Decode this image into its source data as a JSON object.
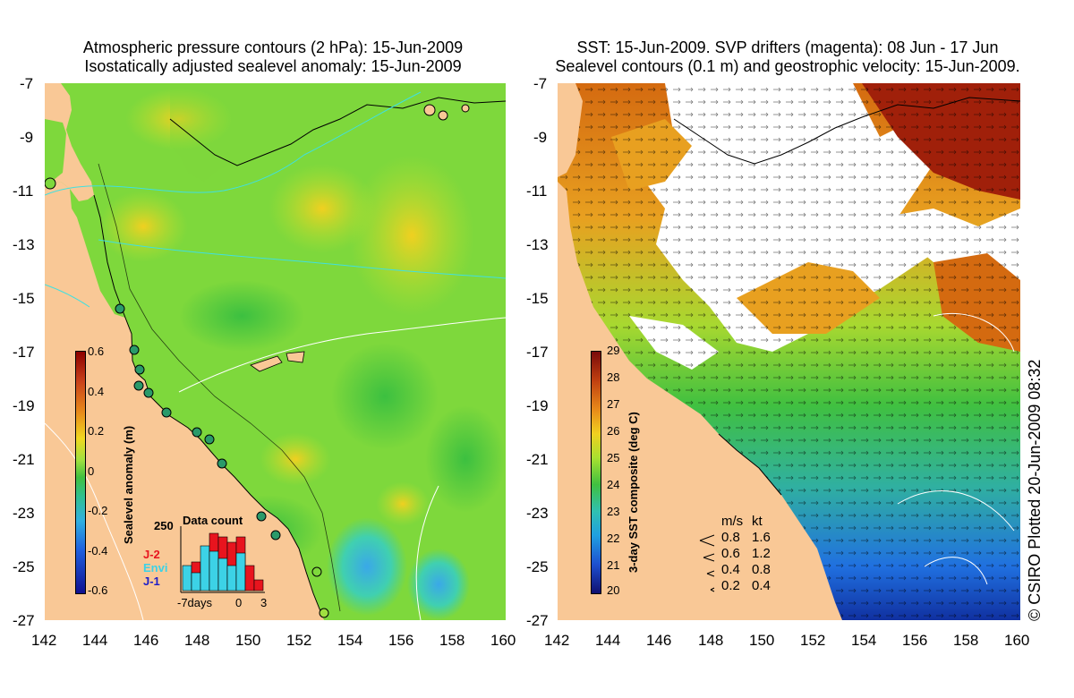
{
  "left_panel": {
    "title_line1": "Atmospheric pressure contours (2 hPa): 15-Jun-2009",
    "title_line2": "Isostatically adjusted sealevel anomaly: 15-Jun-2009",
    "colorbar_title": "Sealevel anomaly (m)",
    "colorbar_ticks": [
      "0.6",
      "0.4",
      "0.2",
      "0",
      "-0.2",
      "-0.4",
      "-0.6"
    ],
    "inset": {
      "title": "Data count",
      "y_label": "250",
      "x_labels": [
        "-7days",
        "0",
        "3"
      ],
      "legend": [
        {
          "label": "J-2",
          "color": "#e8141e"
        },
        {
          "label": "Envi",
          "color": "#3cd2e6"
        },
        {
          "label": "J-1",
          "color": "#1e1ec8"
        }
      ]
    }
  },
  "right_panel": {
    "title_line1": "SST: 15-Jun-2009. SVP drifters (magenta): 08 Jun - 17 Jun",
    "title_line2": "Sealevel contours (0.1 m) and geostrophic velocity: 15-Jun-2009.",
    "colorbar_title": "3-day SST composite (deg C)",
    "colorbar_ticks": [
      "29",
      "28",
      "27",
      "26",
      "25",
      "24",
      "23",
      "22",
      "21",
      "20"
    ],
    "velocity_legend": {
      "header_ms": "m/s",
      "header_kt": "kt",
      "rows": [
        {
          "ms": "0.8",
          "kt": "1.6"
        },
        {
          "ms": "0.6",
          "kt": "1.2"
        },
        {
          "ms": "0.4",
          "kt": "0.8"
        },
        {
          "ms": "0.2",
          "kt": "0.4"
        }
      ]
    }
  },
  "axes": {
    "y_ticks": [
      "-7",
      "-9",
      "-11",
      "-13",
      "-15",
      "-17",
      "-19",
      "-21",
      "-23",
      "-25",
      "-27"
    ],
    "x_ticks": [
      "142",
      "144",
      "146",
      "148",
      "150",
      "152",
      "154",
      "156",
      "158",
      "160"
    ]
  },
  "credit": "© CSIRO Plotted 20-Jun-2009 08:32",
  "colors": {
    "land": "#f9c896",
    "anomaly_green": "#7ed83c",
    "sst_warm": "#d46a10",
    "cloud": "#ffffff"
  }
}
